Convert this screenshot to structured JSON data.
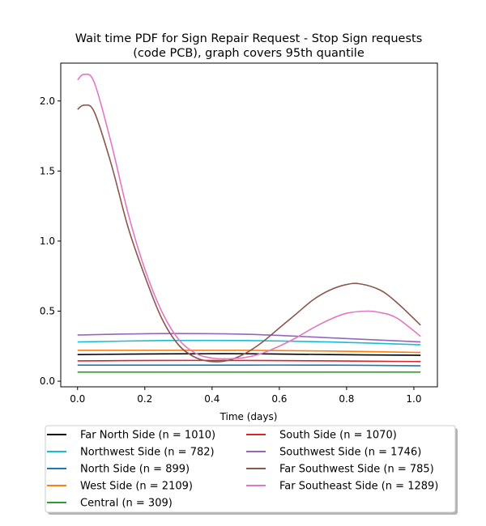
{
  "chart_data": {
    "type": "line",
    "title_lines": [
      "Wait time PDF for Sign Repair Request - Stop Sign  requests",
      "(code PCB), graph covers 95th quantile"
    ],
    "xlabel": "Time (days)",
    "ylabel": "",
    "xlim": [
      -0.05,
      1.07
    ],
    "ylim": [
      -0.04,
      2.27
    ],
    "xticks": [
      0.0,
      0.2,
      0.4,
      0.6,
      0.8,
      1.0
    ],
    "xtick_labels": [
      "0.0",
      "0.2",
      "0.4",
      "0.6",
      "0.8",
      "1.0"
    ],
    "yticks": [
      0.0,
      0.5,
      1.0,
      1.5,
      2.0
    ],
    "ytick_labels": [
      "0.0",
      "0.5",
      "1.0",
      "1.5",
      "2.0"
    ],
    "grid": false,
    "legend_position": "below",
    "series": [
      {
        "name": "Far North Side (n = 1010)",
        "color": "#000000",
        "x": [
          0.0,
          0.25,
          0.5,
          0.75,
          1.02
        ],
        "y": [
          0.19,
          0.195,
          0.196,
          0.19,
          0.185
        ]
      },
      {
        "name": "Northwest Side (n = 782)",
        "color": "#17becf",
        "x": [
          0.0,
          0.25,
          0.5,
          0.75,
          1.02
        ],
        "y": [
          0.28,
          0.29,
          0.29,
          0.28,
          0.26
        ]
      },
      {
        "name": "North Side (n = 899)",
        "color": "#1f77b4",
        "x": [
          0.0,
          0.25,
          0.5,
          0.75,
          1.02
        ],
        "y": [
          0.115,
          0.115,
          0.115,
          0.115,
          0.11
        ]
      },
      {
        "name": "West Side (n = 2109)",
        "color": "#ff7f0e",
        "x": [
          0.0,
          0.25,
          0.5,
          0.75,
          1.02
        ],
        "y": [
          0.22,
          0.22,
          0.22,
          0.215,
          0.205
        ]
      },
      {
        "name": "Central (n = 309)",
        "color": "#2ca02c",
        "x": [
          0.0,
          0.5,
          1.02
        ],
        "y": [
          0.065,
          0.065,
          0.065
        ]
      },
      {
        "name": "South Side (n = 1070)",
        "color": "#d62728",
        "x": [
          0.0,
          0.25,
          0.5,
          0.75,
          1.02
        ],
        "y": [
          0.145,
          0.148,
          0.148,
          0.145,
          0.14
        ]
      },
      {
        "name": "Southwest Side (n = 1746)",
        "color": "#9467bd",
        "x": [
          0.0,
          0.25,
          0.5,
          0.75,
          1.02
        ],
        "y": [
          0.33,
          0.34,
          0.335,
          0.31,
          0.28
        ]
      },
      {
        "name": "Far Southwest Side (n = 785)",
        "color": "#8c564b",
        "x": [
          0.0,
          0.02,
          0.05,
          0.1,
          0.15,
          0.2,
          0.25,
          0.3,
          0.35,
          0.4,
          0.45,
          0.5,
          0.55,
          0.6,
          0.65,
          0.7,
          0.75,
          0.8,
          0.84,
          0.9,
          0.95,
          1.02
        ],
        "y": [
          1.94,
          1.97,
          1.92,
          1.55,
          1.1,
          0.75,
          0.45,
          0.26,
          0.17,
          0.14,
          0.15,
          0.2,
          0.28,
          0.38,
          0.48,
          0.58,
          0.65,
          0.69,
          0.695,
          0.65,
          0.56,
          0.4
        ]
      },
      {
        "name": "Far Southeast Side (n = 1289)",
        "color": "#e377c2",
        "x": [
          0.0,
          0.02,
          0.05,
          0.1,
          0.15,
          0.2,
          0.25,
          0.3,
          0.35,
          0.4,
          0.45,
          0.5,
          0.55,
          0.6,
          0.65,
          0.7,
          0.75,
          0.8,
          0.86,
          0.9,
          0.95,
          1.02
        ],
        "y": [
          2.15,
          2.19,
          2.13,
          1.7,
          1.2,
          0.8,
          0.5,
          0.3,
          0.2,
          0.165,
          0.16,
          0.17,
          0.2,
          0.25,
          0.31,
          0.38,
          0.44,
          0.485,
          0.5,
          0.49,
          0.45,
          0.32
        ]
      }
    ]
  }
}
